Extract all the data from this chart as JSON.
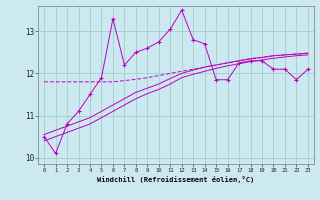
{
  "xlabel": "Windchill (Refroidissement éolien,°C)",
  "bg_color": "#cce8f0",
  "grid_color": "#99ccbb",
  "line_color": "#bb00bb",
  "x_values": [
    0,
    1,
    2,
    3,
    4,
    5,
    6,
    7,
    8,
    9,
    10,
    11,
    12,
    13,
    14,
    15,
    16,
    17,
    18,
    19,
    20,
    21,
    22,
    23
  ],
  "series1": [
    10.5,
    10.1,
    10.8,
    11.1,
    11.5,
    11.9,
    13.3,
    12.2,
    12.5,
    12.6,
    12.75,
    13.05,
    13.5,
    12.8,
    12.7,
    11.85,
    11.85,
    12.25,
    12.3,
    12.3,
    12.1,
    12.1,
    11.85,
    12.1
  ],
  "series2": [
    11.8,
    11.8,
    11.8,
    11.8,
    11.8,
    11.8,
    11.8,
    11.83,
    11.86,
    11.9,
    11.95,
    12.0,
    12.05,
    12.1,
    12.15,
    12.2,
    12.25,
    12.3,
    12.35,
    12.38,
    12.42,
    12.44,
    12.46,
    12.48
  ],
  "series3": [
    10.55,
    10.65,
    10.75,
    10.85,
    10.95,
    11.1,
    11.25,
    11.4,
    11.55,
    11.65,
    11.75,
    11.88,
    12.0,
    12.08,
    12.15,
    12.2,
    12.25,
    12.3,
    12.35,
    12.38,
    12.42,
    12.44,
    12.46,
    12.48
  ],
  "series4": [
    10.4,
    10.5,
    10.6,
    10.7,
    10.8,
    10.95,
    11.1,
    11.25,
    11.4,
    11.52,
    11.62,
    11.75,
    11.9,
    11.98,
    12.05,
    12.12,
    12.18,
    12.23,
    12.28,
    12.32,
    12.36,
    12.39,
    12.42,
    12.44
  ],
  "ylim": [
    9.85,
    13.6
  ],
  "xlim": [
    -0.5,
    23.5
  ],
  "yticks": [
    10,
    11,
    12,
    13
  ],
  "xticks": [
    0,
    1,
    2,
    3,
    4,
    5,
    6,
    7,
    8,
    9,
    10,
    11,
    12,
    13,
    14,
    15,
    16,
    17,
    18,
    19,
    20,
    21,
    22,
    23
  ]
}
